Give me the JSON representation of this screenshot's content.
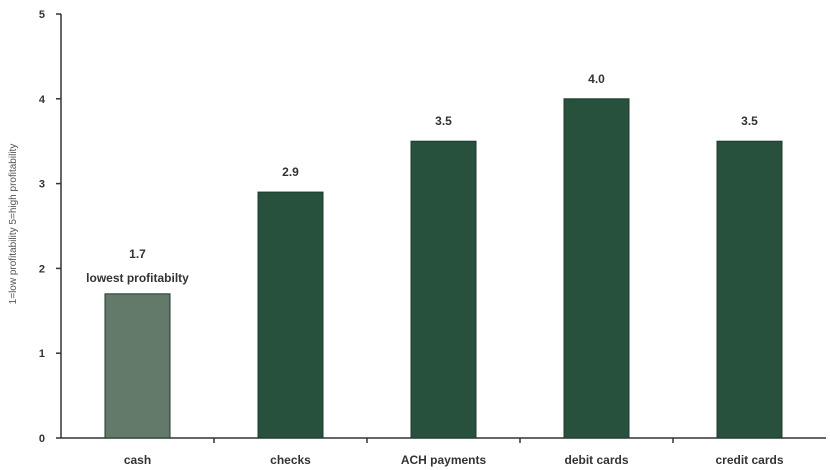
{
  "chart_data": {
    "type": "bar",
    "title": "",
    "xlabel": "",
    "ylabel": "1=low profitability 5=high profitability",
    "categories": [
      "cash",
      "checks",
      "ACH payments",
      "debit cards",
      "credit cards"
    ],
    "values": [
      1.7,
      2.9,
      3.5,
      4.0,
      3.5
    ],
    "value_labels": [
      "1.7",
      "2.9",
      "3.5",
      "4.0",
      "3.5"
    ],
    "annotations": [
      {
        "category": "cash",
        "text": "lowest profitabilty"
      }
    ],
    "ylim": [
      0,
      5
    ],
    "yticks": [
      0,
      1,
      2,
      3,
      4,
      5
    ],
    "grid": false,
    "colors": {
      "highlight": "#637a6b",
      "bar": "#27503d",
      "axis": "#333333"
    }
  }
}
